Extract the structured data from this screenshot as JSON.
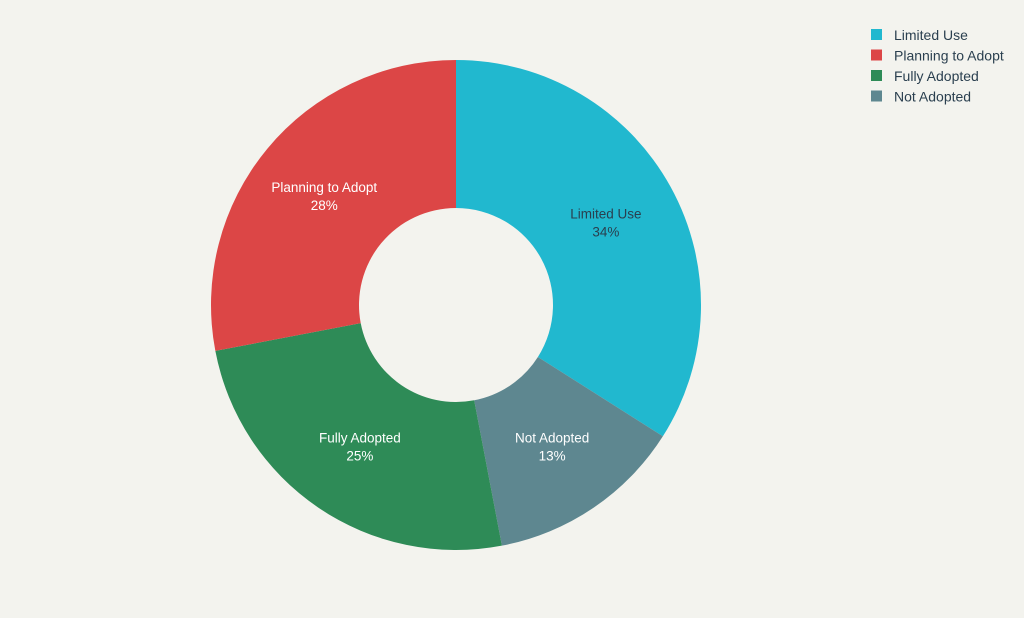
{
  "chart_data": {
    "type": "pie",
    "hole": true,
    "title": "",
    "legend_position": "top-right",
    "slices": [
      {
        "label": "Limited Use",
        "value": 34,
        "percent_text": "34%",
        "color": "#21b8cf",
        "label_color": "#2a3f4f"
      },
      {
        "label": "Not Adopted",
        "value": 13,
        "percent_text": "13%",
        "color": "#5e8790",
        "label_color": "#ffffff"
      },
      {
        "label": "Fully Adopted",
        "value": 25,
        "percent_text": "25%",
        "color": "#2e8b57",
        "label_color": "#ffffff"
      },
      {
        "label": "Planning to Adopt",
        "value": 28,
        "percent_text": "28%",
        "color": "#dc4646",
        "label_color": "#ffffff"
      }
    ],
    "legend": [
      {
        "label": "Limited Use",
        "color": "#21b8cf"
      },
      {
        "label": "Planning to Adopt",
        "color": "#dc4646"
      },
      {
        "label": "Fully Adopted",
        "color": "#2e8b57"
      },
      {
        "label": "Not Adopted",
        "color": "#5e8790"
      }
    ]
  }
}
